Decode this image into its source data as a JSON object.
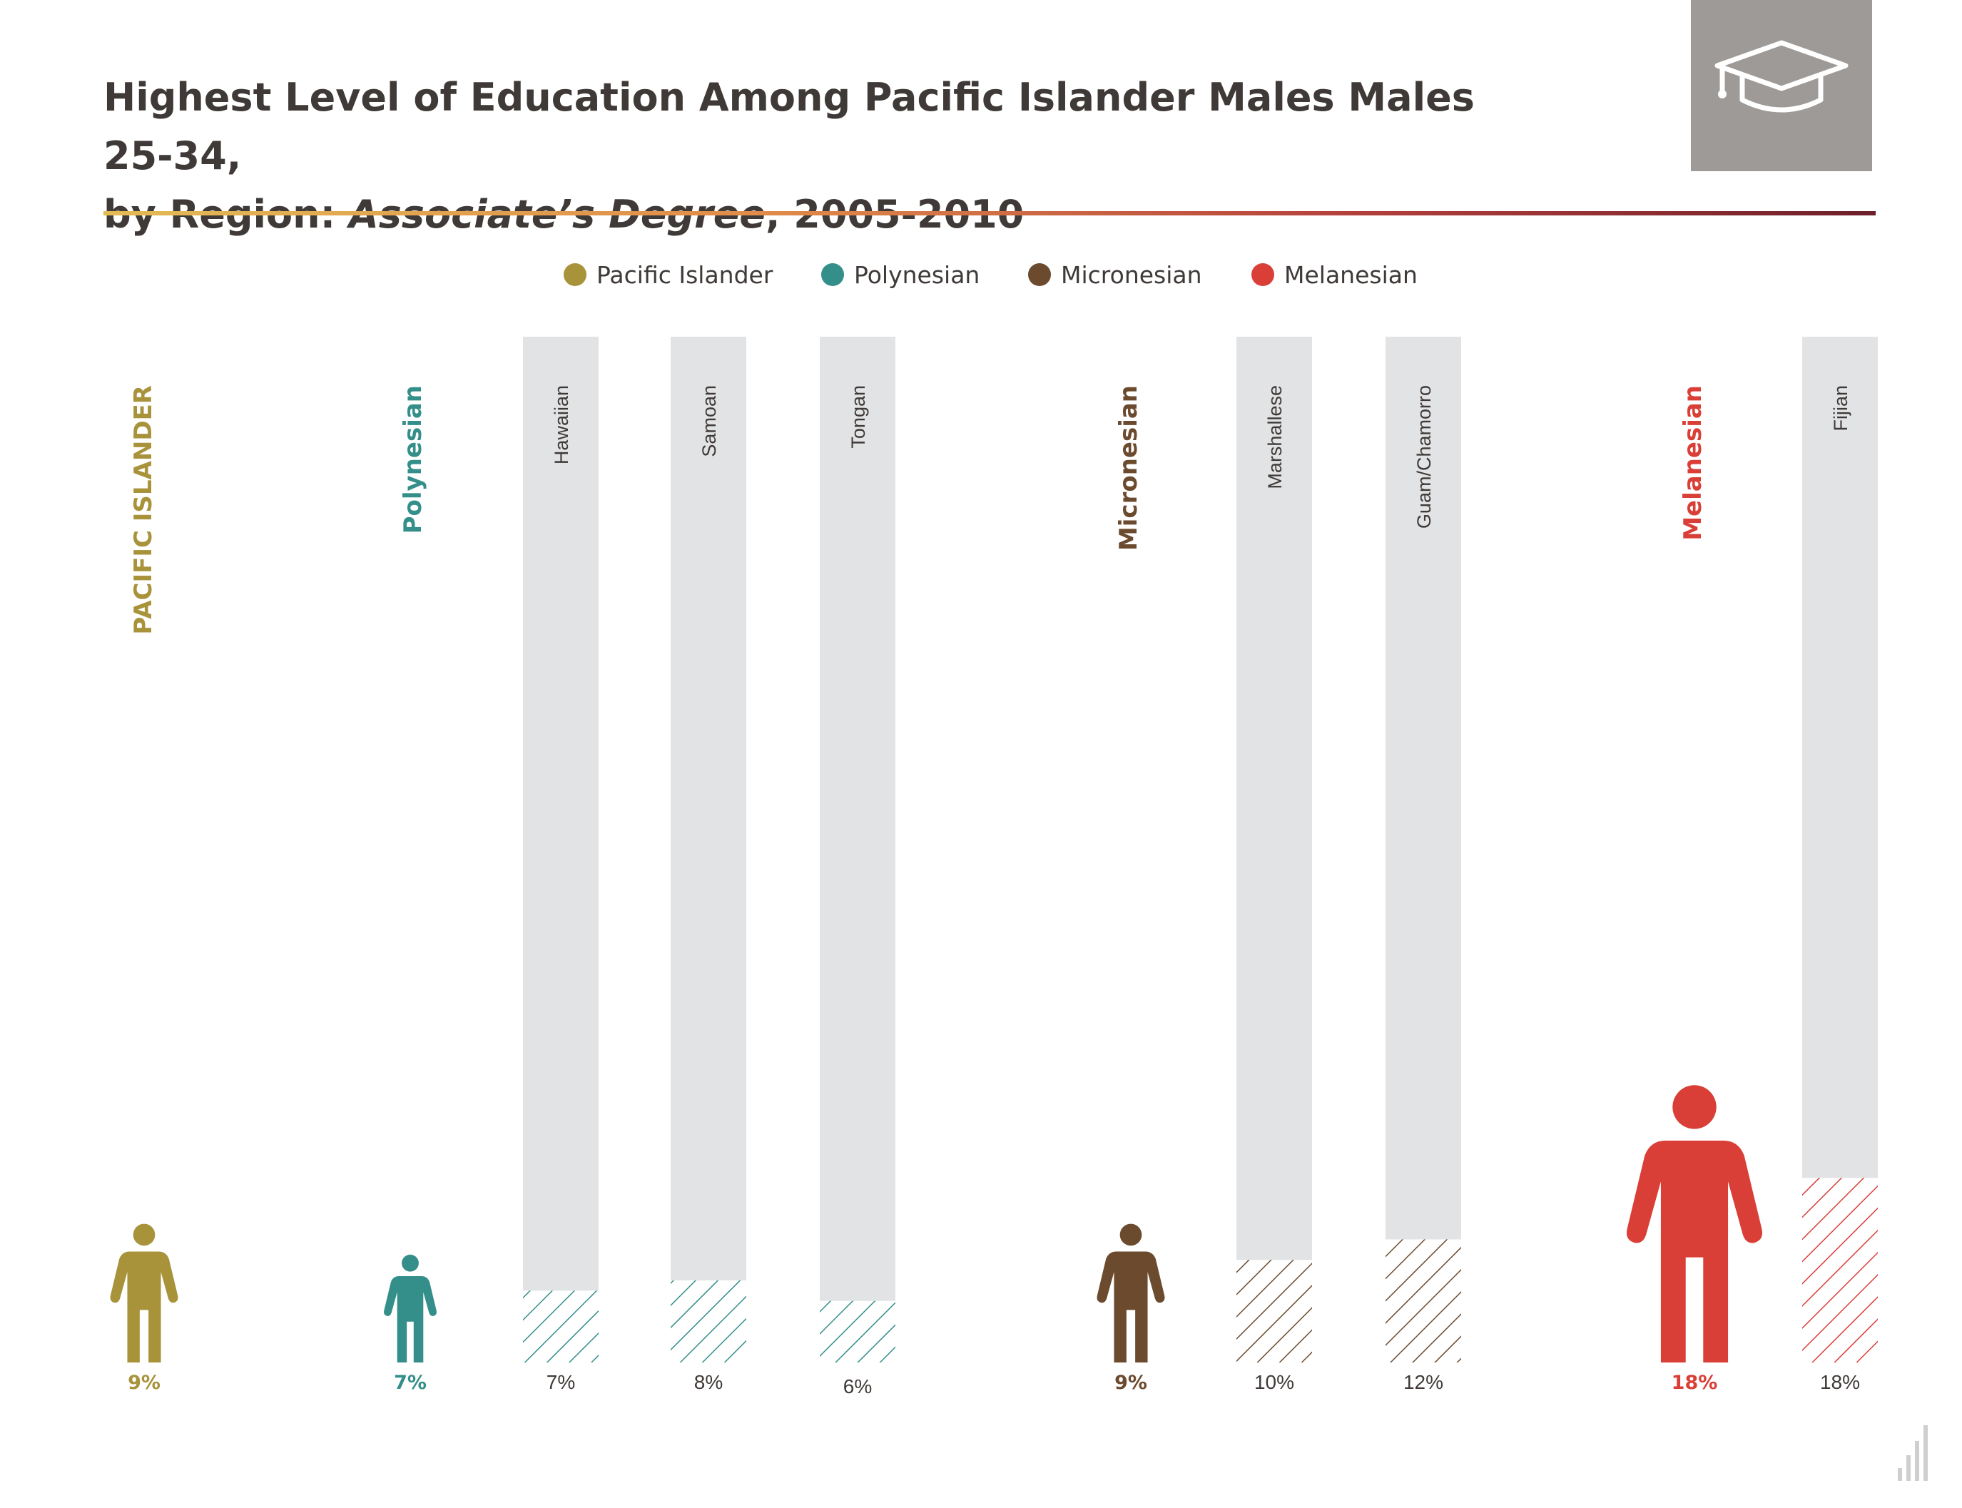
{
  "header": {
    "title_line1": "Highest Level of Education Among Pacific Islander Males Males 25-34,",
    "title_line2_prefix": "by Region: ",
    "title_line2_italic": "Associate’s Degree",
    "title_line2_suffix": ", 2005-2010"
  },
  "logo": {
    "icon": "graduation-cap-icon",
    "background": "#9e9a97"
  },
  "colors": {
    "pacific_islander": "#a8923a",
    "polynesian": "#348e8a",
    "micronesian": "#6b4a2e",
    "melanesian": "#d93f37",
    "bar_background": "#e2e3e4",
    "text": "#3f3a37"
  },
  "legend": [
    {
      "label": "Pacific Islander",
      "color": "#a8923a"
    },
    {
      "label": "Polynesian",
      "color": "#348e8a"
    },
    {
      "label": "Micronesian",
      "color": "#6b4a2e"
    },
    {
      "label": "Melanesian",
      "color": "#d93f37"
    }
  ],
  "chart_data": {
    "type": "bar",
    "unit": "%",
    "ylim": [
      0,
      100
    ],
    "regions": [
      {
        "name": "PACIFIC ISLANDER",
        "value": 9,
        "label": "9%",
        "color": "#a8923a"
      },
      {
        "name": "Polynesian",
        "value": 7,
        "label": "7%",
        "color": "#348e8a"
      },
      {
        "name": "Micronesian",
        "value": 9,
        "label": "9%",
        "color": "#6b4a2e"
      },
      {
        "name": "Melanesian",
        "value": 18,
        "label": "18%",
        "color": "#d93f37"
      }
    ],
    "bars": [
      {
        "name": "Hawaiian",
        "value": 7,
        "label": "7%",
        "region": "Polynesian"
      },
      {
        "name": "Samoan",
        "value": 8,
        "label": "8%",
        "region": "Polynesian"
      },
      {
        "name": "Tongan",
        "value": 6,
        "label": "6%",
        "region": "Polynesian"
      },
      {
        "name": "Marshallese",
        "value": 10,
        "label": "10%",
        "region": "Micronesian"
      },
      {
        "name": "Guam/Chamorro",
        "value": 12,
        "label": "12%",
        "region": "Micronesian"
      },
      {
        "name": "Fijian",
        "value": 18,
        "label": "18%",
        "region": "Melanesian"
      }
    ]
  },
  "footer": {
    "icon": "bar-chart-icon"
  }
}
